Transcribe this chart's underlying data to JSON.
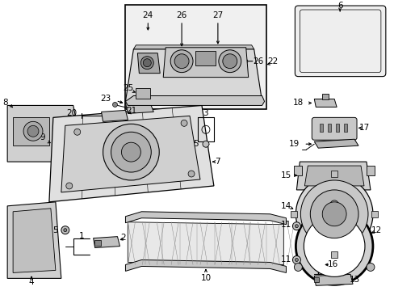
{
  "background_color": "#ffffff",
  "figure_width": 4.89,
  "figure_height": 3.6,
  "dpi": 100,
  "lc": "#000000",
  "gray1": "#e8e8e8",
  "gray2": "#d0d0d0",
  "gray3": "#b8b8b8",
  "box_fill": "#f0f0f0"
}
